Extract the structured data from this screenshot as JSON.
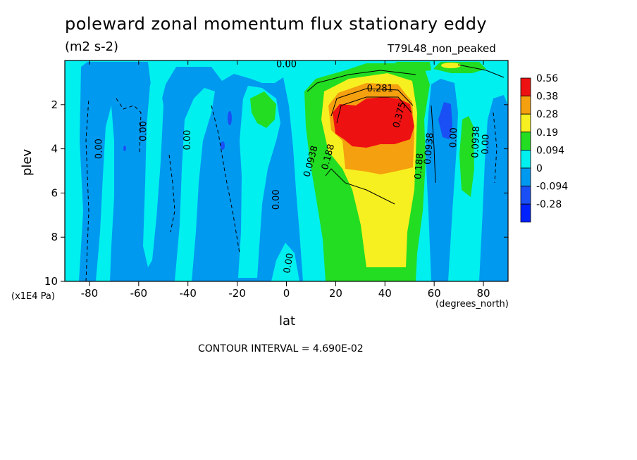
{
  "header": {
    "title": "poleward zonal momentum flux stationary eddy",
    "units": "(m2 s-2)",
    "run_id": "T79L48_non_peaked",
    "y_unit": "(x1E4 Pa)",
    "x_unit": "(degrees_north)",
    "footer": "CONTOUR INTERVAL = 4.690E-02"
  },
  "chart_data": {
    "type": "heatmap",
    "title": "poleward zonal momentum flux stationary eddy",
    "xlabel": "lat",
    "ylabel": "plev",
    "xlim": [
      -90,
      90
    ],
    "ylim": [
      10,
      0
    ],
    "y_reversed": true,
    "x_ticks": [
      -80,
      -60,
      -40,
      -20,
      0,
      20,
      40,
      60,
      80
    ],
    "y_ticks": [
      2,
      4,
      6,
      8,
      10
    ],
    "colorbar": {
      "levels": [
        "0.56",
        "0.38",
        "0.28",
        "0.19",
        "0.094",
        "0",
        "-0.094",
        "-0.28"
      ],
      "colors": [
        "#ee1111",
        "#f5a00f",
        "#f7f020",
        "#22dd22",
        "#00f0f0",
        "#0099f0",
        "#1a4ff5",
        "#0022ff"
      ]
    },
    "contour_labels": [
      {
        "text": "0.00",
        "lat": -75,
        "plev": 4.0,
        "rot": -90
      },
      {
        "text": "0.00",
        "lat": -57,
        "plev": 3.2,
        "rot": -90
      },
      {
        "text": "0.00",
        "lat": -39,
        "plev": 3.6,
        "rot": -90
      },
      {
        "text": "0.00",
        "lat": -3,
        "plev": 6.3,
        "rot": -90
      },
      {
        "text": "0.00",
        "lat": 0,
        "plev": 0.3,
        "rot": 0
      },
      {
        "text": "0.00",
        "lat": 2,
        "plev": 9.2,
        "rot": -80
      },
      {
        "text": "0.0938",
        "lat": 11,
        "plev": 4.6,
        "rot": -75
      },
      {
        "text": "0.188",
        "lat": 18,
        "plev": 4.4,
        "rot": -75
      },
      {
        "text": "0.281",
        "lat": 38,
        "plev": 1.4,
        "rot": 0
      },
      {
        "text": "0.375",
        "lat": 47,
        "plev": 2.5,
        "rot": -75
      },
      {
        "text": "0.188",
        "lat": 55,
        "plev": 4.8,
        "rot": -85
      },
      {
        "text": "0.0938",
        "lat": 59,
        "plev": 4.0,
        "rot": -85
      },
      {
        "text": "0.00",
        "lat": 69,
        "plev": 3.5,
        "rot": -88
      },
      {
        "text": "0.0938",
        "lat": 78,
        "plev": 3.7,
        "rot": -88
      },
      {
        "text": "0.00",
        "lat": 82,
        "plev": 3.8,
        "rot": -88
      }
    ]
  }
}
